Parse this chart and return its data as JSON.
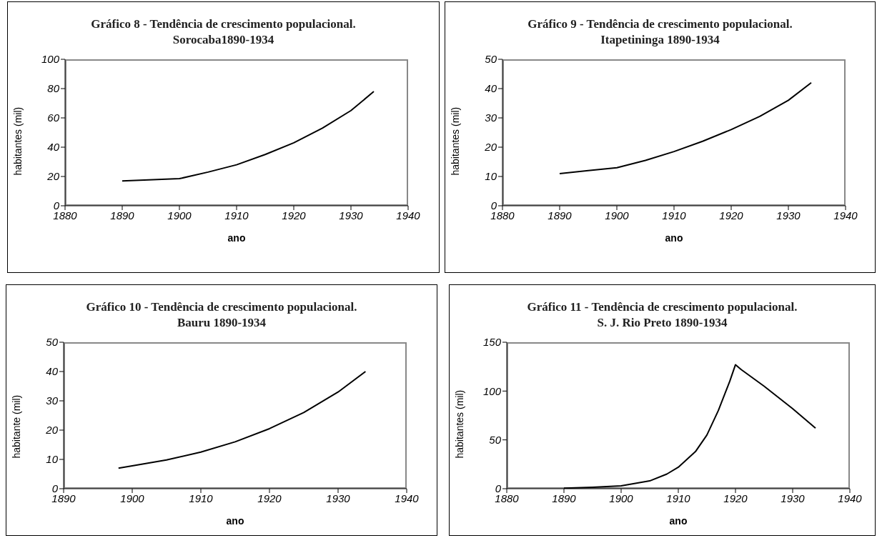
{
  "chart_data": [
    {
      "type": "line",
      "title": "Gráfico 8 - Tendência de crescimento populacional.  Sorocaba1890-1934",
      "xlabel": "ano",
      "ylabel": "habitantes (mil)",
      "x": [
        1890,
        1900,
        1905,
        1910,
        1915,
        1920,
        1925,
        1930,
        1934
      ],
      "series": [
        {
          "color": "#000000",
          "values": [
            17,
            18.5,
            23,
            28,
            35,
            43,
            53,
            65,
            78
          ]
        }
      ],
      "xlim": [
        1880,
        1940
      ],
      "xticks": [
        1880,
        1890,
        1900,
        1910,
        1920,
        1930,
        1940
      ],
      "ylim": [
        0,
        100
      ],
      "yticks": [
        0,
        20,
        40,
        60,
        80,
        100
      ],
      "grid": false,
      "legend": false,
      "marker": "none",
      "line_style": "solid"
    },
    {
      "type": "line",
      "title": "Gráfico 9 - Tendência de crescimento populacional.  Itapetininga 1890-1934",
      "xlabel": "ano",
      "ylabel": "habitantes (mil)",
      "x": [
        1890,
        1895,
        1900,
        1905,
        1910,
        1915,
        1920,
        1925,
        1930,
        1934
      ],
      "series": [
        {
          "color": "#000000",
          "values": [
            11,
            12,
            13,
            15.5,
            18.5,
            22,
            26,
            30.5,
            36,
            42
          ]
        }
      ],
      "xlim": [
        1880,
        1940
      ],
      "xticks": [
        1880,
        1890,
        1900,
        1910,
        1920,
        1930,
        1940
      ],
      "ylim": [
        0,
        50
      ],
      "yticks": [
        0,
        10,
        20,
        30,
        40,
        50
      ],
      "grid": false,
      "legend": false,
      "marker": "none",
      "line_style": "solid"
    },
    {
      "type": "line",
      "title": "Gráfico 10 - Tendência de crescimento populacional. Bauru 1890-1934",
      "xlabel": "ano",
      "ylabel": "habitante (mil)",
      "x": [
        1898,
        1900,
        1905,
        1910,
        1915,
        1920,
        1925,
        1930,
        1934
      ],
      "series": [
        {
          "color": "#000000",
          "values": [
            7,
            7.8,
            9.8,
            12.5,
            16,
            20.5,
            26,
            33,
            40
          ]
        }
      ],
      "xlim": [
        1890,
        1940
      ],
      "xticks": [
        1890,
        1900,
        1910,
        1920,
        1930,
        1940
      ],
      "ylim": [
        0,
        50
      ],
      "yticks": [
        0,
        10,
        20,
        30,
        40,
        50
      ],
      "grid": false,
      "legend": false,
      "marker": "none",
      "line_style": "solid"
    },
    {
      "type": "line",
      "title": "Gráfico 11 - Tendência de crescimento populacional. S. J. Rio Preto 1890-1934",
      "xlabel": "ano",
      "ylabel": "habitantes (mil)",
      "x": [
        1890,
        1895,
        1900,
        1905,
        1908,
        1910,
        1913,
        1915,
        1917,
        1919,
        1920,
        1921,
        1925,
        1930,
        1934
      ],
      "series": [
        {
          "color": "#000000",
          "values": [
            0.5,
            1.5,
            3,
            8,
            15,
            22,
            38,
            55,
            80,
            110,
            127,
            122,
            105,
            82,
            62
          ]
        }
      ],
      "xlim": [
        1880,
        1940
      ],
      "xticks": [
        1880,
        1890,
        1900,
        1910,
        1920,
        1930,
        1940
      ],
      "ylim": [
        0,
        150
      ],
      "yticks": [
        0,
        50,
        100,
        150
      ],
      "grid": false,
      "legend": false,
      "marker": "none",
      "line_style": "solid"
    }
  ]
}
